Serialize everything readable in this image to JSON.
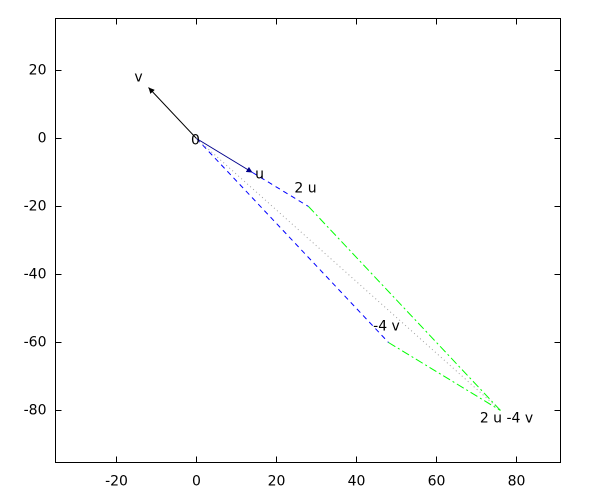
{
  "chart_data": {
    "type": "vector",
    "xlim": [
      -35.25,
      91
    ],
    "ylim": [
      -95.3,
      35.3
    ],
    "xticks": [
      -20,
      0,
      20,
      40,
      60,
      80
    ],
    "yticks": [
      20,
      0,
      -20,
      -40,
      -60,
      -80
    ],
    "grid": false,
    "points": [
      {
        "label": "0",
        "x": 0,
        "y": 0
      },
      {
        "label": "u",
        "x": 14,
        "y": -10
      },
      {
        "label": "2 u",
        "x": 28,
        "y": -20
      },
      {
        "label": "v",
        "x": -12,
        "y": 15
      },
      {
        "label": "-4 v",
        "x": 48,
        "y": -60
      },
      {
        "label": "2 u -4 v",
        "x": 76,
        "y": -80
      }
    ],
    "segments": [
      {
        "x": [
          0,
          -12
        ],
        "y": [
          0,
          15
        ],
        "color": "#000000",
        "style": "solid",
        "arrow": true
      },
      {
        "x": [
          0,
          14
        ],
        "y": [
          0,
          -10
        ],
        "color": "#00008b",
        "style": "solid",
        "arrow": true
      },
      {
        "x": [
          14,
          28
        ],
        "y": [
          -10,
          -20
        ],
        "color": "#0000ff",
        "style": "dashed",
        "arrow": false
      },
      {
        "x": [
          0,
          48
        ],
        "y": [
          0,
          -60
        ],
        "color": "#0000ff",
        "style": "dashed",
        "arrow": false
      },
      {
        "x": [
          28,
          76
        ],
        "y": [
          -20,
          -80
        ],
        "color": "#00ff00",
        "style": "dashdot",
        "arrow": false
      },
      {
        "x": [
          48,
          76
        ],
        "y": [
          -60,
          -80
        ],
        "color": "#00ff00",
        "style": "dashdot",
        "arrow": false
      },
      {
        "x": [
          0,
          76
        ],
        "y": [
          0,
          -80
        ],
        "color": "#a0a0a0",
        "style": "dotted",
        "arrow": false
      }
    ]
  }
}
